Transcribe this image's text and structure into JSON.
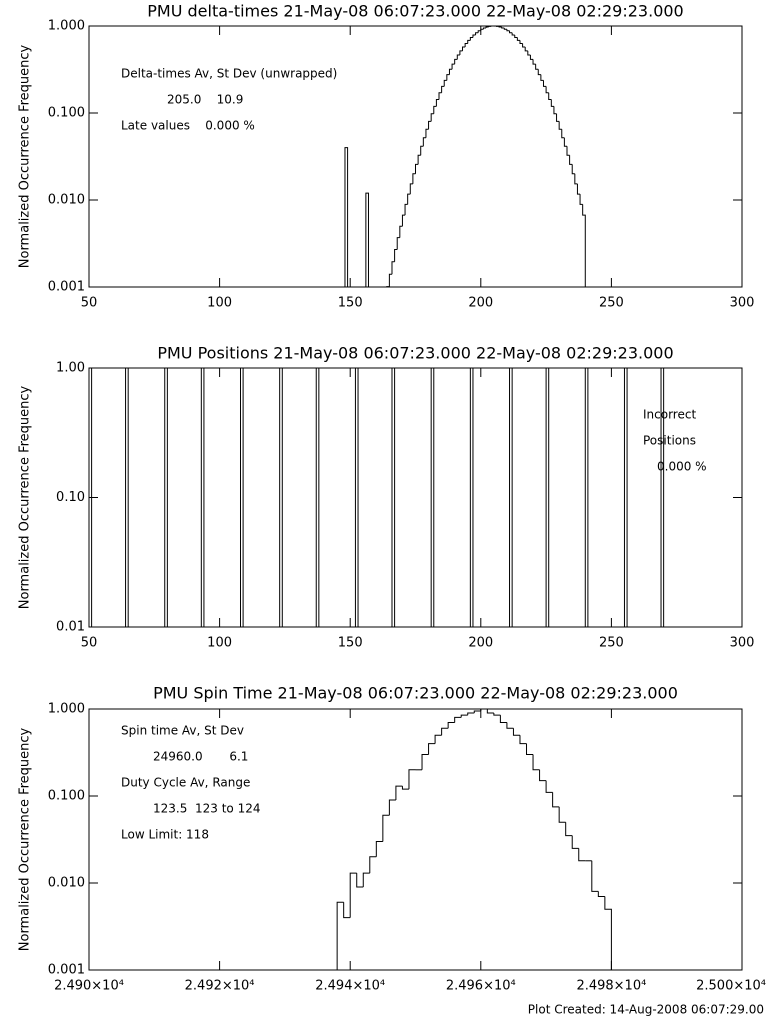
{
  "chart_data": [
    {
      "type": "histogram",
      "title": "PMU delta-times 21-May-08 06:07:23.000 22-May-08 02:29:23.000",
      "ylabel": "Normalized Occurrence Frequency",
      "color": "#000000",
      "log_y": true,
      "xlim": [
        50,
        300
      ],
      "xticks": [
        50,
        100,
        150,
        200,
        250,
        300
      ],
      "ylim": [
        0.001,
        1
      ],
      "yticks": [
        {
          "value": 1,
          "label": "1.000"
        },
        {
          "value": 0.1,
          "label": "0.100"
        },
        {
          "value": 0.01,
          "label": "0.010"
        },
        {
          "value": 0.001,
          "label": "0.001"
        }
      ],
      "annotations": [
        "Delta-times Av, St Dev (unwrapped)",
        "205.0    10.9",
        "Late values    0.000 %"
      ],
      "bins": [
        148,
        149,
        150,
        151,
        152,
        153,
        154,
        155,
        156,
        157,
        158,
        159,
        160,
        161,
        162,
        163,
        164,
        165,
        166,
        167,
        168,
        169,
        170,
        171,
        172,
        173,
        174,
        175,
        176,
        177,
        178,
        179,
        180,
        181,
        182,
        183,
        184,
        185,
        186,
        187,
        188,
        189,
        190,
        191,
        192,
        193,
        194,
        195,
        196,
        197,
        198,
        199,
        200,
        201,
        202,
        203,
        204,
        205,
        206,
        207,
        208,
        209,
        210,
        211,
        212,
        213,
        214,
        215,
        216,
        217,
        218,
        219,
        220,
        221,
        222,
        223,
        224,
        225,
        226,
        227,
        228,
        229,
        230,
        231,
        232,
        233,
        234,
        235,
        236,
        237,
        238,
        239,
        240
      ],
      "values": [
        0.04,
        null,
        null,
        null,
        null,
        null,
        null,
        null,
        0.012,
        null,
        null,
        null,
        null,
        null,
        null,
        null,
        0.00101,
        0.0014,
        0.00195,
        0.0027,
        0.0037,
        0.005,
        0.0067,
        0.0089,
        0.0117,
        0.0153,
        0.02,
        0.0257,
        0.0327,
        0.0415,
        0.052,
        0.065,
        0.08,
        0.098,
        0.119,
        0.143,
        0.171,
        0.202,
        0.237,
        0.276,
        0.318,
        0.364,
        0.413,
        0.464,
        0.518,
        0.573,
        0.629,
        0.684,
        0.738,
        0.789,
        0.837,
        0.881,
        0.918,
        0.95,
        0.974,
        0.991,
        0.999,
        0.999,
        0.991,
        0.974,
        0.95,
        0.918,
        0.881,
        0.837,
        0.789,
        0.738,
        0.684,
        0.629,
        0.573,
        0.518,
        0.464,
        0.413,
        0.364,
        0.318,
        0.276,
        0.237,
        0.202,
        0.171,
        0.143,
        0.119,
        0.098,
        0.08,
        0.065,
        0.052,
        0.0415,
        0.0327,
        0.0257,
        0.02,
        0.0153,
        0.0117,
        0.0089,
        0.0067
      ]
    },
    {
      "type": "histogram",
      "title": "PMU Positions 21-May-08 06:07:23.000 22-May-08 02:29:23.000",
      "ylabel": "Normalized Occurrence Frequency",
      "color": "#000000",
      "log_y": true,
      "xlim": [
        50,
        300
      ],
      "xticks": [
        50,
        100,
        150,
        200,
        250,
        300
      ],
      "ylim": [
        0.01,
        1
      ],
      "yticks": [
        {
          "value": 1,
          "label": "1.00"
        },
        {
          "value": 0.1,
          "label": "0.10"
        },
        {
          "value": 0.01,
          "label": "0.01"
        }
      ],
      "annotations": [
        "Incorrect",
        "Positions",
        "0.000 %"
      ],
      "bins": [
        50,
        51,
        64,
        65,
        79,
        80,
        93,
        94,
        108,
        109,
        123,
        124,
        137,
        138,
        152,
        153,
        166,
        167,
        181,
        182,
        196,
        197,
        211,
        212,
        225,
        226,
        240,
        241,
        255,
        256,
        269,
        270
      ],
      "values": [
        1,
        null,
        1,
        null,
        1,
        null,
        1,
        null,
        1,
        null,
        1,
        null,
        1,
        null,
        1,
        null,
        1,
        null,
        1,
        null,
        1,
        null,
        1,
        null,
        1,
        null,
        1,
        null,
        1,
        null,
        1
      ]
    },
    {
      "type": "histogram",
      "title": "PMU Spin Time 21-May-08 06:07:23.000 22-May-08 02:29:23.000",
      "ylabel": "Normalized Occurrence Frequency",
      "color": "#000000",
      "log_y": true,
      "xlim": [
        24900,
        25000
      ],
      "xticks": [
        {
          "value": 24900,
          "label": "2.490×10⁴"
        },
        {
          "value": 24920,
          "label": "2.492×10⁴"
        },
        {
          "value": 24940,
          "label": "2.494×10⁴"
        },
        {
          "value": 24960,
          "label": "2.496×10⁴"
        },
        {
          "value": 24980,
          "label": "2.498×10⁴"
        },
        {
          "value": 25000,
          "label": "2.500×10⁴"
        }
      ],
      "ylim": [
        0.001,
        1
      ],
      "yticks": [
        {
          "value": 1,
          "label": "1.000"
        },
        {
          "value": 0.1,
          "label": "0.100"
        },
        {
          "value": 0.01,
          "label": "0.010"
        },
        {
          "value": 0.001,
          "label": "0.001"
        }
      ],
      "annotations": [
        "Spin time Av, St Dev",
        "24960.0       6.1",
        "Duty Cycle Av, Range",
        "123.5  123 to 124",
        "Low Limit: 118"
      ],
      "bins": [
        24938,
        24939,
        24940,
        24941,
        24942,
        24943,
        24944,
        24945,
        24946,
        24947,
        24948,
        24949,
        24950,
        24951,
        24952,
        24953,
        24954,
        24955,
        24956,
        24957,
        24958,
        24959,
        24960,
        24961,
        24962,
        24963,
        24964,
        24965,
        24966,
        24967,
        24968,
        24969,
        24970,
        24971,
        24972,
        24973,
        24974,
        24975,
        24976,
        24977,
        24978,
        24979,
        24980
      ],
      "values": [
        0.006,
        0.004,
        0.013,
        0.009,
        0.013,
        0.02,
        0.03,
        0.06,
        0.09,
        0.13,
        0.12,
        0.2,
        0.2,
        0.3,
        0.4,
        0.5,
        0.6,
        0.7,
        0.8,
        0.85,
        0.9,
        0.95,
        1,
        0.9,
        0.85,
        0.7,
        0.6,
        0.5,
        0.4,
        0.3,
        0.2,
        0.15,
        0.11,
        0.075,
        0.05,
        0.035,
        0.025,
        0.018,
        0.018,
        0.008,
        0.007,
        0.005
      ]
    }
  ],
  "footer": "Plot Created: 14-Aug-2008 06:07:29.00"
}
